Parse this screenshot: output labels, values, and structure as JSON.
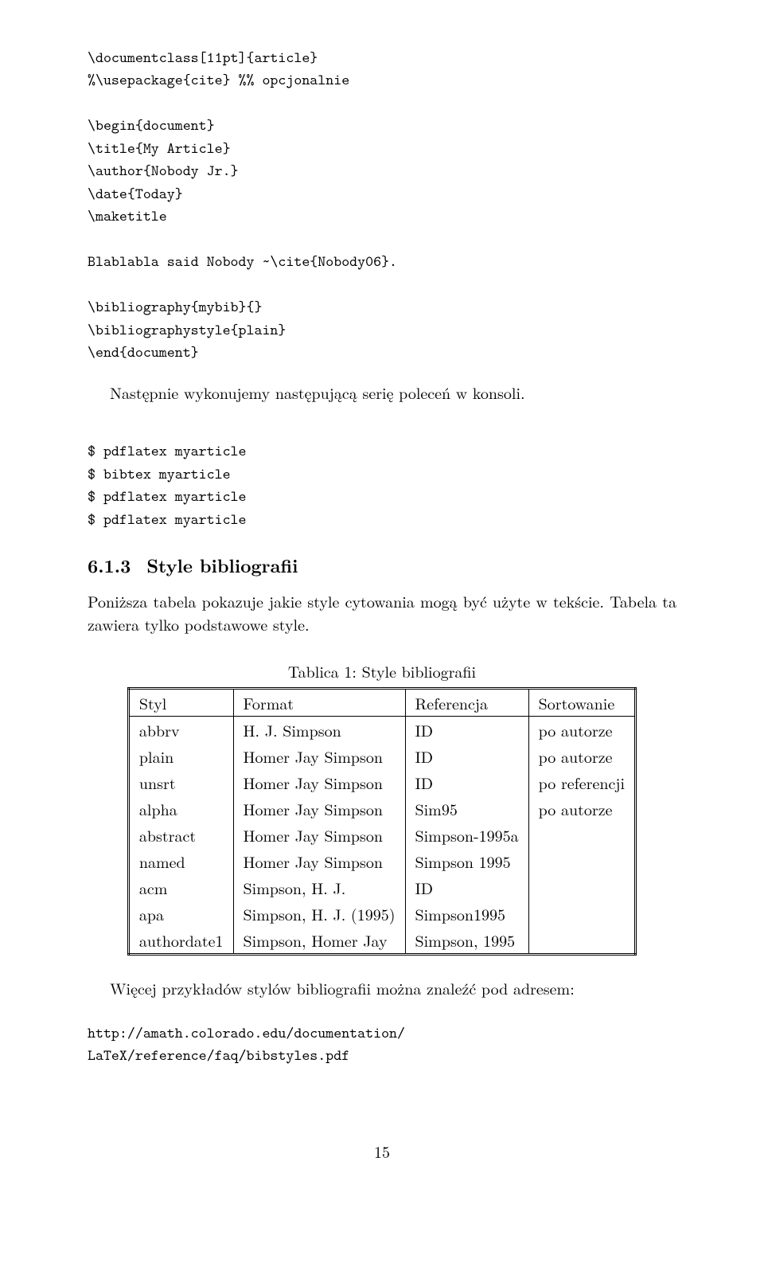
{
  "code1": {
    "l1": "\\documentclass[11pt]{article}",
    "l2": "%\\usepackage{cite} %% opcjonalnie",
    "l3": "",
    "l4": "\\begin{document}",
    "l5": "\\title{My Article}",
    "l6": "\\author{Nobody Jr.}",
    "l7": "\\date{Today}",
    "l8": "\\maketitle",
    "l9": "",
    "l10": "Blablabla said Nobody ~\\cite{Nobody06}.",
    "l11": "",
    "l12": "\\bibliography{mybib}{}",
    "l13": "\\bibliographystyle{plain}",
    "l14": "\\end{document}"
  },
  "para1": "Następnie wykonujemy następującą serię poleceń w konsoli.",
  "code2": {
    "l1": "$ pdflatex myarticle",
    "l2": "$ bibtex myarticle",
    "l3": "$ pdflatex myarticle",
    "l4": "$ pdflatex myarticle"
  },
  "section": {
    "num": "6.1.3",
    "title": "Style bibliografii"
  },
  "para2": "Poniższa tabela pokazuje jakie style cytowania mogą być użyte w tekście. Tabela ta zawiera tylko podstawowe style.",
  "table": {
    "caption": "Tablica 1: Style bibliografii",
    "headers": {
      "c1": "Styl",
      "c2": "Format",
      "c3": "Referencja",
      "c4": "Sortowanie"
    },
    "rows": [
      {
        "c1": "abbrv",
        "c2": "H. J. Simpson",
        "c3": "ID",
        "c4": "po autorze"
      },
      {
        "c1": "plain",
        "c2": "Homer Jay Simpson",
        "c3": "ID",
        "c4": "po autorze"
      },
      {
        "c1": "unsrt",
        "c2": "Homer Jay Simpson",
        "c3": "ID",
        "c4": "po referencji"
      },
      {
        "c1": "alpha",
        "c2": "Homer Jay Simpson",
        "c3": "Sim95",
        "c4": "po autorze"
      },
      {
        "c1": "abstract",
        "c2": "Homer Jay Simpson",
        "c3": "Simpson-1995a",
        "c4": ""
      },
      {
        "c1": "named",
        "c2": "Homer Jay Simpson",
        "c3": "Simpson 1995",
        "c4": ""
      },
      {
        "c1": "acm",
        "c2": "Simpson, H. J.",
        "c3": "ID",
        "c4": ""
      },
      {
        "c1": "apa",
        "c2": "Simpson, H. J. (1995)",
        "c3": "Simpson1995",
        "c4": ""
      },
      {
        "c1": "authordate1",
        "c2": "Simpson, Homer Jay",
        "c3": "Simpson, 1995",
        "c4": ""
      }
    ]
  },
  "para3": "Więcej przykładów stylów bibliografii można znaleźć pod adresem:",
  "link": {
    "l1": "http://amath.colorado.edu/documentation/",
    "l2": "LaTeX/reference/faq/bibstyles.pdf"
  },
  "pageNumber": "15"
}
